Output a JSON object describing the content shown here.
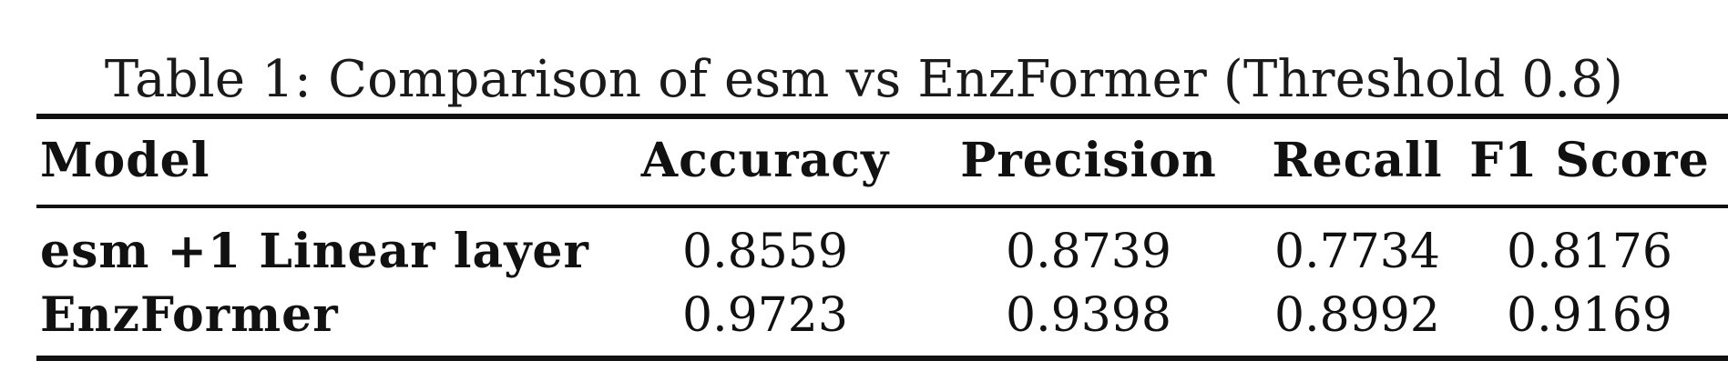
{
  "table": {
    "caption": "Table 1: Comparison of esm vs EnzFormer (Threshold 0.8)",
    "headers": [
      "Model",
      "Accuracy",
      "Precision",
      "Recall",
      "F1 Score"
    ],
    "rows": [
      [
        "esm +1 Linear layer",
        "0.8559",
        "0.8739",
        "0.7734",
        "0.8176"
      ],
      [
        "EnzFormer",
        "0.9723",
        "0.9398",
        "0.8992",
        "0.9169"
      ]
    ]
  }
}
